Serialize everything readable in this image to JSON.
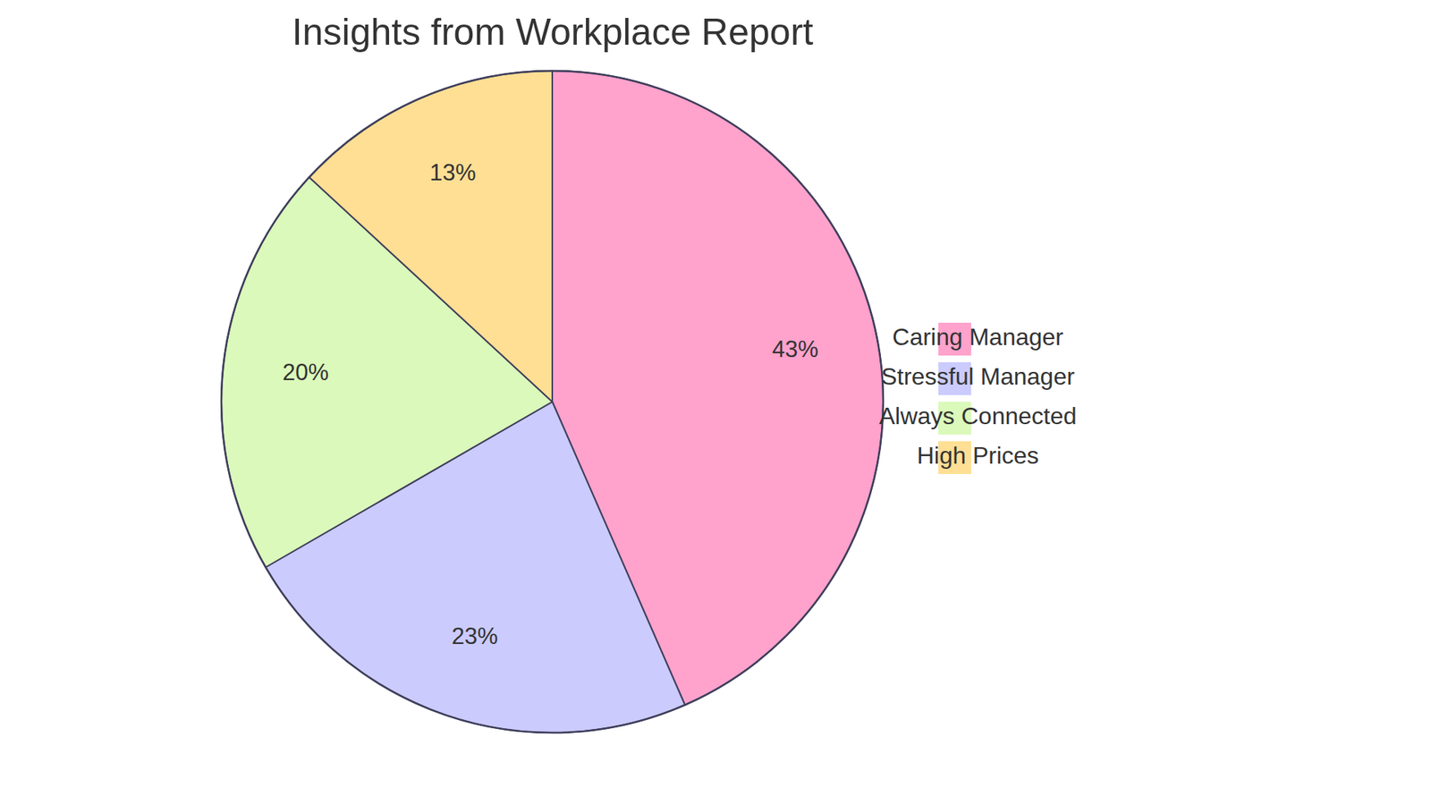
{
  "chart_data": {
    "type": "pie",
    "title": "Insights from Workplace Report",
    "categories": [
      "Caring Manager",
      "Stressful Manager",
      "Always Connected",
      "High Prices"
    ],
    "values": [
      43,
      23,
      20,
      13
    ],
    "value_labels": [
      "43%",
      "23%",
      "20%",
      "13%"
    ],
    "colors": [
      "#ffa2cc",
      "#cbcbfe",
      "#dbf9ba",
      "#fedf94"
    ],
    "legend": "right",
    "data_labels": true
  }
}
